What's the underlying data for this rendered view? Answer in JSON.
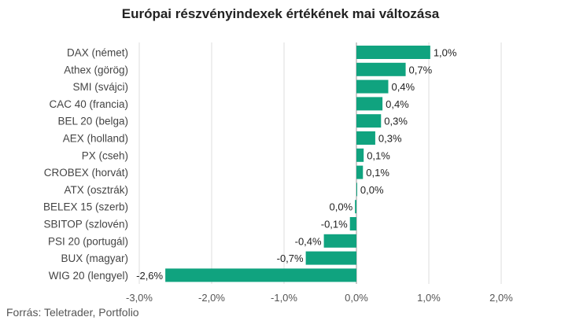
{
  "title": "Európai részvényindexek értékének mai változása",
  "source": "Forrás: Teletrader, Portfolio",
  "colors": {
    "bar": "#10a37f",
    "grid": "#dddddd",
    "zero": "#999999"
  },
  "chart_data": {
    "type": "bar",
    "orientation": "horizontal",
    "title": "Európai részvényindexek értékének mai változása",
    "categories": [
      "DAX (német)",
      "Athex (görög)",
      "SMI (svájci)",
      "CAC 40 (francia)",
      "BEL 20 (belga)",
      "AEX (holland)",
      "PX (cseh)",
      "CROBEX (horvát)",
      "ATX (osztrák)",
      "BELEX 15 (szerb)",
      "SBITOP (szlovén)",
      "PSI 20 (portugál)",
      "BUX (magyar)",
      "WIG 20 (lengyel)"
    ],
    "values": [
      1.02,
      0.68,
      0.44,
      0.36,
      0.34,
      0.26,
      0.1,
      0.09,
      0.01,
      -0.02,
      -0.09,
      -0.45,
      -0.7,
      -2.64
    ],
    "value_labels": [
      "1,0%",
      "0,7%",
      "0,4%",
      "0,4%",
      "0,3%",
      "0,3%",
      "0,1%",
      "0,1%",
      "0,0%",
      "0,0%",
      "-0,1%",
      "-0,4%",
      "-0,7%",
      "-2,6%"
    ],
    "xlim": [
      -3,
      2
    ],
    "xticks": [
      -3,
      -2,
      -1,
      0,
      1,
      2
    ],
    "xtick_labels": [
      "-3,0%",
      "-2,0%",
      "-1,0%",
      "0,0%",
      "1,0%",
      "2,0%"
    ],
    "xlabel": "",
    "ylabel": "",
    "grid": true
  }
}
